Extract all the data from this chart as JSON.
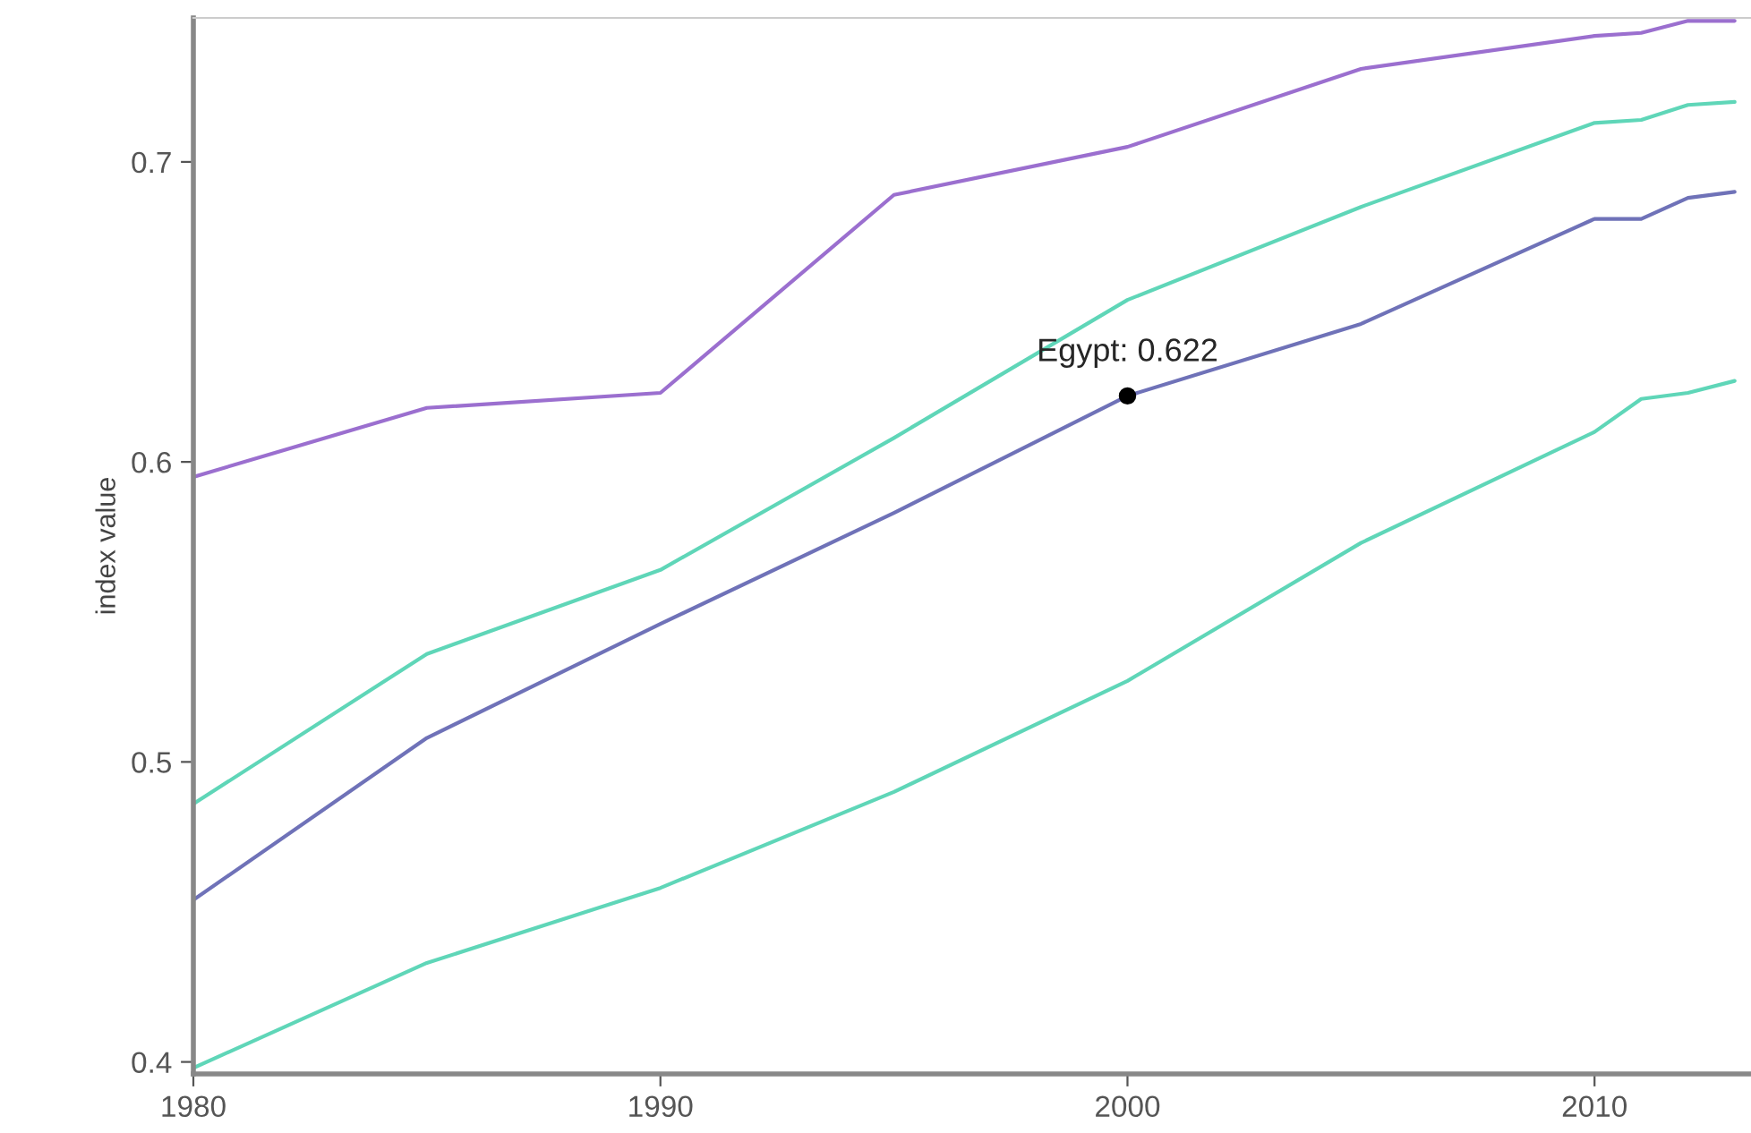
{
  "chart_data": {
    "type": "line",
    "ylabel": "index value",
    "x": [
      1980,
      1985,
      1990,
      1995,
      2000,
      2005,
      2010,
      2011,
      2012,
      2013
    ],
    "series": [
      {
        "color": "#9b6fcf",
        "values": [
          0.595,
          0.618,
          0.623,
          0.689,
          0.705,
          0.731,
          0.742,
          0.743,
          0.747,
          0.747
        ]
      },
      {
        "color": "#5fd6b8",
        "values": [
          0.486,
          0.536,
          0.564,
          0.608,
          0.654,
          0.685,
          0.713,
          0.714,
          0.719,
          0.72
        ]
      },
      {
        "color": "#6f72b8",
        "values": [
          0.454,
          0.508,
          0.546,
          0.583,
          0.622,
          0.646,
          0.681,
          0.681,
          0.688,
          0.69
        ]
      },
      {
        "color": "#5fd6b8",
        "values": [
          0.398,
          0.433,
          0.458,
          0.49,
          0.527,
          0.573,
          0.61,
          0.621,
          0.623,
          0.627
        ]
      }
    ],
    "xlim": [
      1980,
      2013.35
    ],
    "ylim": [
      0.396,
      0.748
    ],
    "xticks": [
      1980,
      1990,
      2000,
      2010
    ],
    "yticks": [
      0.4,
      0.5,
      0.6,
      0.7
    ],
    "grid": false,
    "legend": false,
    "marker": "none",
    "line_style": "solid",
    "annotations": [
      {
        "text": "Egypt: 0.622",
        "x": 2000,
        "y": 0.622
      }
    ]
  }
}
